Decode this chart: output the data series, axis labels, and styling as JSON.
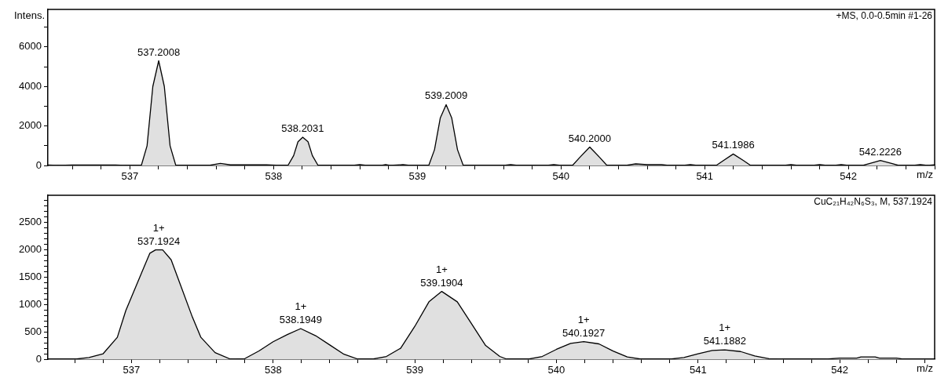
{
  "chart_data": [
    {
      "type": "area",
      "ylabel": "Intens.",
      "xlabel": "m/z",
      "legend": false,
      "grid": false,
      "xlim": [
        536.43,
        542.6
      ],
      "ylim": [
        0,
        7900
      ],
      "xticks": [
        {
          "value": 536.6,
          "label": null
        },
        {
          "value": 536.8,
          "label": null
        },
        537,
        {
          "value": 537.2,
          "label": null
        },
        {
          "value": 537.4,
          "label": null
        },
        {
          "value": 537.6,
          "label": null
        },
        {
          "value": 537.8,
          "label": null
        },
        538,
        {
          "value": 538.2,
          "label": null
        },
        {
          "value": 538.4,
          "label": null
        },
        {
          "value": 538.6,
          "label": null
        },
        {
          "value": 538.8,
          "label": null
        },
        539,
        {
          "value": 539.2,
          "label": null
        },
        {
          "value": 539.4,
          "label": null
        },
        {
          "value": 539.6,
          "label": null
        },
        {
          "value": 539.8,
          "label": null
        },
        540,
        {
          "value": 540.2,
          "label": null
        },
        {
          "value": 540.4,
          "label": null
        },
        {
          "value": 540.6,
          "label": null
        },
        {
          "value": 540.8,
          "label": null
        },
        541,
        {
          "value": 541.2,
          "label": null
        },
        {
          "value": 541.4,
          "label": null
        },
        {
          "value": 541.6,
          "label": null
        },
        {
          "value": 541.8,
          "label": null
        },
        542,
        {
          "value": 542.2,
          "label": null
        },
        {
          "value": 542.4,
          "label": null
        },
        {
          "value": 542.6,
          "label": null
        }
      ],
      "yticks": [
        0,
        {
          "value": 1000,
          "label": null
        },
        2000,
        {
          "value": 3000,
          "label": null
        },
        4000,
        {
          "value": 5000,
          "label": null
        },
        6000,
        {
          "value": 7000,
          "label": null
        }
      ],
      "series": [
        {
          "color": "#e0e0e0",
          "x": [
            536.43,
            536.5,
            536.6,
            536.9,
            536.97,
            537.08,
            537.12,
            537.16,
            537.2008,
            537.24,
            537.28,
            537.32,
            537.55,
            537.63,
            537.7,
            537.95,
            538.05,
            538.1,
            538.14,
            538.17,
            538.2031,
            538.24,
            538.27,
            538.31,
            538.55,
            538.6,
            538.65,
            538.75,
            538.78,
            538.81,
            538.9,
            538.95,
            539.08,
            539.12,
            539.16,
            539.2009,
            539.24,
            539.28,
            539.32,
            539.6,
            539.65,
            539.7,
            539.9,
            539.95,
            540.0,
            540.08,
            540.13,
            540.2,
            540.27,
            540.32,
            540.45,
            540.52,
            540.6,
            540.7,
            540.75,
            540.85,
            540.9,
            540.95,
            541.08,
            541.13,
            541.1986,
            541.27,
            541.32,
            541.55,
            541.6,
            541.65,
            541.75,
            541.8,
            541.85,
            541.9,
            541.95,
            542.0,
            542.1,
            542.15,
            542.2226,
            542.3,
            542.35,
            542.45,
            542.5,
            542.55,
            542.6
          ],
          "values": [
            20,
            0,
            20,
            20,
            0,
            0,
            1000,
            4000,
            5300,
            4000,
            1000,
            0,
            0,
            100,
            30,
            30,
            0,
            0,
            500,
            1200,
            1430,
            1200,
            500,
            0,
            0,
            40,
            0,
            0,
            40,
            0,
            40,
            0,
            0,
            800,
            2400,
            3080,
            2400,
            800,
            0,
            0,
            40,
            0,
            0,
            40,
            0,
            0,
            400,
            930,
            400,
            0,
            0,
            80,
            40,
            40,
            0,
            0,
            40,
            0,
            0,
            250,
            580,
            250,
            0,
            0,
            40,
            0,
            0,
            40,
            0,
            0,
            40,
            0,
            0,
            100,
            250,
            100,
            0,
            0,
            40,
            0,
            30
          ]
        }
      ],
      "annotations": [
        "+MS, 0.0-0.5min #1-26",
        {
          "text": "537.2008",
          "x": 537.2008,
          "y": 5300
        },
        {
          "text": "538.2031",
          "x": 538.2031,
          "y": 1430
        },
        {
          "text": "539.2009",
          "x": 539.2009,
          "y": 3080
        },
        {
          "text": "540.2000",
          "x": 540.2,
          "y": 930
        },
        {
          "text": "541.1986",
          "x": 541.1986,
          "y": 580
        },
        {
          "text": "542.2226",
          "x": 542.2226,
          "y": 250
        }
      ]
    },
    {
      "type": "area",
      "xlabel": "m/z",
      "legend": false,
      "grid": false,
      "xlim": [
        536.41,
        542.67
      ],
      "ylim": [
        0,
        3000
      ],
      "xticks": [
        {
          "value": 536.6,
          "label": null
        },
        {
          "value": 536.8,
          "label": null
        },
        537,
        {
          "value": 537.2,
          "label": null
        },
        {
          "value": 537.4,
          "label": null
        },
        {
          "value": 537.6,
          "label": null
        },
        {
          "value": 537.8,
          "label": null
        },
        538,
        {
          "value": 538.2,
          "label": null
        },
        {
          "value": 538.4,
          "label": null
        },
        {
          "value": 538.6,
          "label": null
        },
        {
          "value": 538.8,
          "label": null
        },
        539,
        {
          "value": 539.2,
          "label": null
        },
        {
          "value": 539.4,
          "label": null
        },
        {
          "value": 539.6,
          "label": null
        },
        {
          "value": 539.8,
          "label": null
        },
        540,
        {
          "value": 540.2,
          "label": null
        },
        {
          "value": 540.4,
          "label": null
        },
        {
          "value": 540.6,
          "label": null
        },
        {
          "value": 540.8,
          "label": null
        },
        541,
        {
          "value": 541.2,
          "label": null
        },
        {
          "value": 541.4,
          "label": null
        },
        {
          "value": 541.6,
          "label": null
        },
        {
          "value": 541.8,
          "label": null
        },
        542,
        {
          "value": 542.2,
          "label": null
        },
        {
          "value": 542.4,
          "label": null
        },
        {
          "value": 542.6,
          "label": null
        }
      ],
      "yticks": [
        0,
        {
          "value": 100,
          "label": null
        },
        {
          "value": 200,
          "label": null
        },
        {
          "value": 300,
          "label": null
        },
        {
          "value": 400,
          "label": null
        },
        500,
        {
          "value": 600,
          "label": null
        },
        {
          "value": 700,
          "label": null
        },
        {
          "value": 800,
          "label": null
        },
        {
          "value": 900,
          "label": null
        },
        1000,
        {
          "value": 1100,
          "label": null
        },
        {
          "value": 1200,
          "label": null
        },
        {
          "value": 1300,
          "label": null
        },
        {
          "value": 1400,
          "label": null
        },
        1500,
        {
          "value": 1600,
          "label": null
        },
        {
          "value": 1700,
          "label": null
        },
        {
          "value": 1800,
          "label": null
        },
        {
          "value": 1900,
          "label": null
        },
        2000,
        {
          "value": 2100,
          "label": null
        },
        {
          "value": 2200,
          "label": null
        },
        {
          "value": 2300,
          "label": null
        },
        {
          "value": 2400,
          "label": null
        },
        2500,
        {
          "value": 2600,
          "label": null
        },
        {
          "value": 2700,
          "label": null
        },
        {
          "value": 2800,
          "label": null
        },
        {
          "value": 2900,
          "label": null
        }
      ],
      "series": [
        {
          "color": "#e0e0e0",
          "x": [
            536.41,
            536.6,
            536.7,
            536.8,
            536.9,
            536.96,
            537.07,
            537.13,
            537.17,
            537.1924,
            537.22,
            537.28,
            537.34,
            537.43,
            537.49,
            537.59,
            537.7,
            537.8,
            537.9,
            538.0,
            538.1,
            538.1949,
            538.3,
            538.4,
            538.5,
            538.6,
            538.7,
            538.8,
            538.9,
            539.0,
            539.1,
            539.1904,
            539.3,
            539.4,
            539.5,
            539.6,
            539.65,
            539.8,
            539.9,
            540.0,
            540.1,
            540.1927,
            540.3,
            540.4,
            540.5,
            540.6,
            540.8,
            540.9,
            541.0,
            541.1,
            541.1882,
            541.3,
            541.4,
            541.5,
            541.6,
            541.9,
            542.0,
            542.12,
            542.15,
            542.25,
            542.28,
            542.4,
            542.45,
            542.67
          ],
          "values": [
            0,
            0,
            30,
            100,
            400,
            890,
            1570,
            1940,
            2000,
            2000,
            2000,
            1820,
            1400,
            770,
            400,
            120,
            0,
            10,
            150,
            320,
            450,
            560,
            430,
            260,
            90,
            0,
            0,
            50,
            200,
            600,
            1050,
            1240,
            1050,
            650,
            250,
            50,
            0,
            0,
            50,
            180,
            290,
            320,
            280,
            150,
            40,
            0,
            0,
            30,
            100,
            160,
            170,
            140,
            60,
            10,
            0,
            0,
            20,
            20,
            40,
            40,
            20,
            20,
            0,
            0
          ]
        }
      ],
      "annotations": [
        "CuC₂₁H₄₂N₆S₃, M, 537.1924",
        {
          "text": "1+\n537.1924",
          "x": 537.1924,
          "y": 2000
        },
        {
          "text": "1+\n538.1949",
          "x": 538.1949,
          "y": 560
        },
        {
          "text": "1+\n539.1904",
          "x": 539.1904,
          "y": 1240
        },
        {
          "text": "1+\n540.1927",
          "x": 540.1927,
          "y": 320
        },
        {
          "text": "1+\n541.1882",
          "x": 541.1882,
          "y": 170
        }
      ]
    }
  ]
}
